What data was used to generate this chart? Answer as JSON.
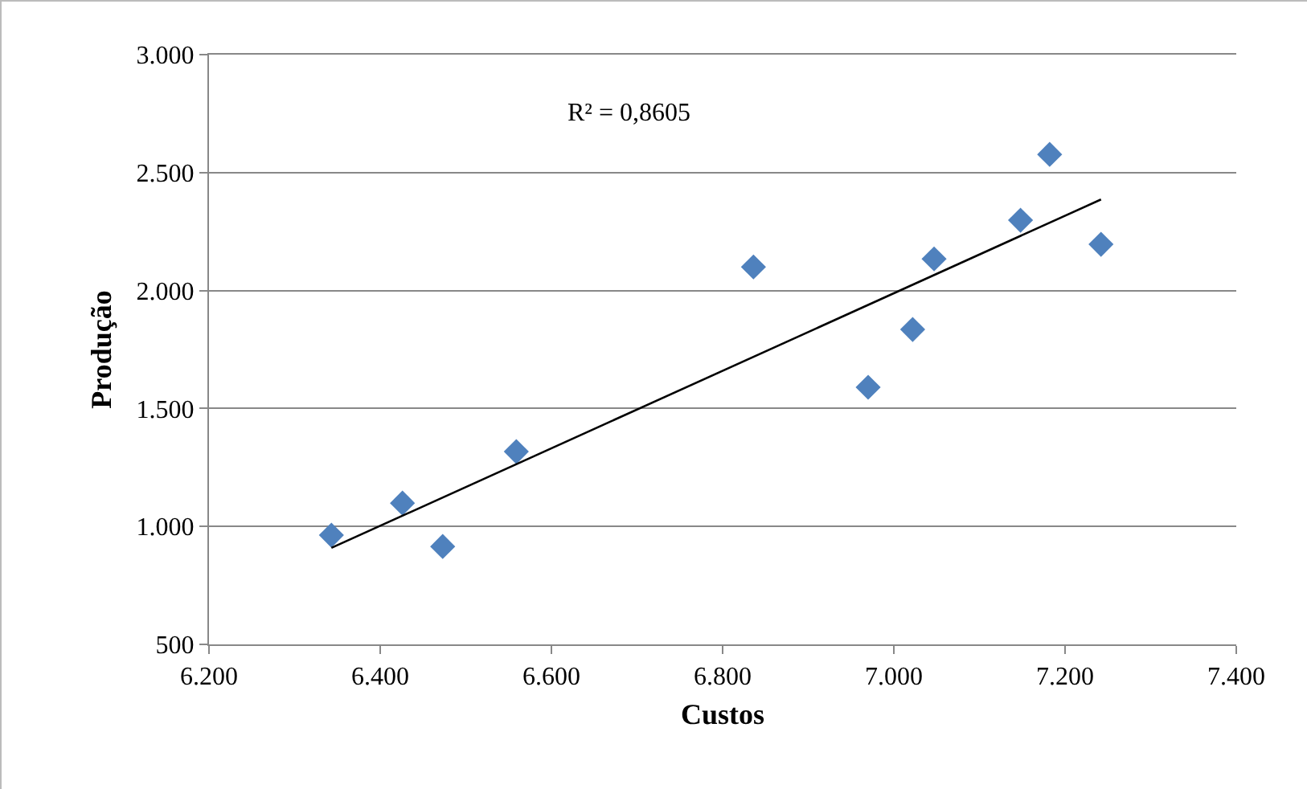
{
  "chart_data": {
    "type": "scatter",
    "xlabel": "Custos",
    "ylabel": "Produção",
    "annotations": [
      "R² = 0,8605"
    ],
    "grid": "y",
    "marker": "diamond",
    "xlim": [
      6200,
      7400
    ],
    "xticks": [
      {
        "value": 6200,
        "label": "6.200"
      },
      {
        "value": 6400,
        "label": "6.400"
      },
      {
        "value": 6600,
        "label": "6.600"
      },
      {
        "value": 6800,
        "label": "6.800"
      },
      {
        "value": 7000,
        "label": "7.000"
      },
      {
        "value": 7200,
        "label": "7.200"
      },
      {
        "value": 7400,
        "label": "7.400"
      }
    ],
    "ylim": [
      500,
      3000
    ],
    "yticks": [
      {
        "value": 500,
        "label": "500"
      },
      {
        "value": 1000,
        "label": "1.000"
      },
      {
        "value": 1500,
        "label": "1.500"
      },
      {
        "value": 2000,
        "label": "2.000"
      },
      {
        "value": 2500,
        "label": "2.500"
      },
      {
        "value": 3000,
        "label": "3.000"
      }
    ],
    "series": [
      {
        "color": "#4f81bd",
        "x": [
          6343,
          6426,
          6473,
          6559,
          6836,
          6970,
          7022,
          7047,
          7148,
          7182,
          7242
        ],
        "values": [
          963,
          1099,
          915,
          1317,
          2100,
          1590,
          1835,
          2134,
          2298,
          2577,
          2196
        ]
      },
      {
        "type": "line",
        "color": "#000000",
        "marker": "none",
        "x": [
          6343,
          7242
        ],
        "values": [
          909,
          2386
        ]
      }
    ]
  }
}
